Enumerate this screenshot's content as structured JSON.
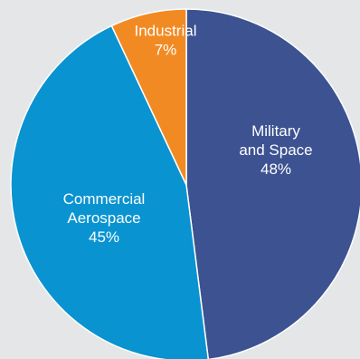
{
  "chart_data": {
    "type": "pie",
    "slices": [
      {
        "label_lines": [
          "Military",
          "and Space"
        ],
        "value": 48,
        "value_label": "48%",
        "color": "#3c5291"
      },
      {
        "label_lines": [
          "Commercial",
          "Aerospace"
        ],
        "value": 45,
        "value_label": "45%",
        "color": "#0993d0"
      },
      {
        "label_lines": [
          "Industrial"
        ],
        "value": 7,
        "value_label": "7%",
        "color": "#f28a23"
      }
    ],
    "start_angle_deg": 0,
    "direction": "clockwise",
    "slice_border_color": "#ffffff",
    "background_color": "#e4e6e7"
  }
}
